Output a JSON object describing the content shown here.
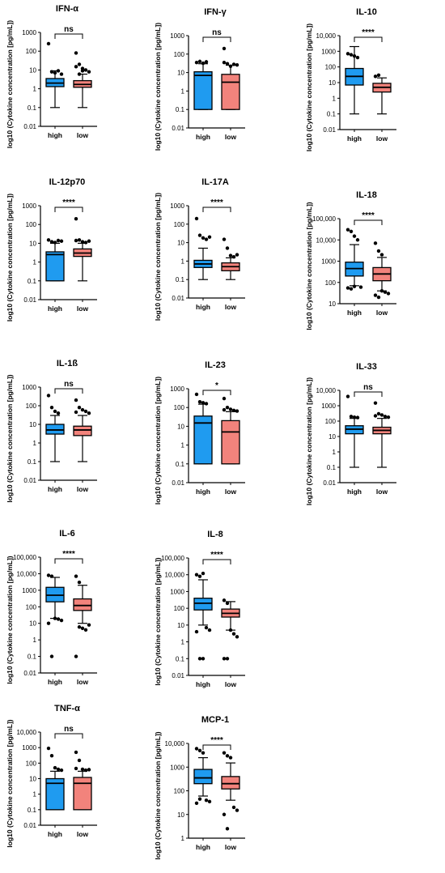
{
  "colors": {
    "high": "#1f9bf0",
    "low": "#f2837c",
    "ink": "#000000"
  },
  "chart_data": [
    {
      "type": "box",
      "title": "IFN-α",
      "ylabel": "log10 (Cytokine concentration [pg/mL])",
      "scale": "log",
      "ylim": [
        0.01,
        1000
      ],
      "ticks": [
        "0.01",
        "0.1",
        "1",
        "10",
        "100",
        "1000"
      ],
      "significance": "ns",
      "categories": [
        "high",
        "low"
      ],
      "series": [
        {
          "name": "high",
          "min": 0.1,
          "q1": 1.3,
          "median": 2,
          "q3": 3.5,
          "max": 9,
          "outliers": [
            250,
            8,
            7,
            9,
            6
          ]
        },
        {
          "name": "low",
          "min": 0.1,
          "q1": 1.2,
          "median": 1.7,
          "q3": 2.7,
          "max": 6,
          "outliers": [
            80,
            20,
            12,
            10,
            8,
            15,
            6,
            9
          ]
        }
      ]
    },
    {
      "type": "box",
      "title": "IFN-γ",
      "ylabel": "log10 (Cytokine concentration [pg/mL])",
      "scale": "log",
      "ylim": [
        0.01,
        1000
      ],
      "ticks": [
        "0.01",
        "0.1",
        "1",
        "10",
        "100",
        "1000"
      ],
      "significance": "ns",
      "categories": [
        "high",
        "low"
      ],
      "series": [
        {
          "name": "high",
          "min": 0.1,
          "q1": 0.1,
          "median": 7,
          "q3": 11,
          "max": 30,
          "outliers": [
            35,
            40,
            32,
            38
          ]
        },
        {
          "name": "low",
          "min": 0.1,
          "q1": 0.1,
          "median": 3,
          "q3": 8,
          "max": 25,
          "outliers": [
            200,
            30,
            22,
            28,
            26,
            35
          ]
        }
      ]
    },
    {
      "type": "box",
      "title": "IL-10",
      "ylabel": "log10 (Cytokine concentration [pg/mL])",
      "scale": "log",
      "ylim": [
        0.01,
        10000
      ],
      "ticks": [
        "0.01",
        "0.1",
        "1",
        "10",
        "100",
        "1000",
        "10,000"
      ],
      "significance": "****",
      "categories": [
        "high",
        "low"
      ],
      "series": [
        {
          "name": "high",
          "min": 0.1,
          "q1": 7,
          "median": 25,
          "q3": 80,
          "max": 2000,
          "outliers": [
            700,
            600,
            500,
            400
          ]
        },
        {
          "name": "low",
          "min": 0.1,
          "q1": 2.5,
          "median": 5,
          "q3": 9,
          "max": 20,
          "outliers": [
            25,
            30
          ]
        }
      ]
    },
    {
      "type": "box",
      "title": "IL-12p70",
      "ylabel": "log10 (Cytokine concentration [pg/mL])",
      "scale": "log",
      "ylim": [
        0.01,
        1000
      ],
      "ticks": [
        "0.01",
        "0.1",
        "1",
        "10",
        "100",
        "1000"
      ],
      "significance": "****",
      "categories": [
        "high",
        "low"
      ],
      "series": [
        {
          "name": "high",
          "min": 0.1,
          "q1": 0.1,
          "median": 2.5,
          "q3": 3.5,
          "max": 10,
          "outliers": [
            15,
            12,
            11,
            14,
            13
          ]
        },
        {
          "name": "low",
          "min": 0.1,
          "q1": 2,
          "median": 3,
          "q3": 5,
          "max": 10,
          "outliers": [
            200,
            15,
            12,
            11,
            13,
            14
          ]
        }
      ]
    },
    {
      "type": "box",
      "title": "IL-17A",
      "ylabel": "log10 (Cytokine concentration [pg/mL])",
      "scale": "log",
      "ylim": [
        0.01,
        1000
      ],
      "ticks": [
        "0.01",
        "0.1",
        "1",
        "10",
        "100",
        "1000"
      ],
      "significance": "****",
      "categories": [
        "high",
        "low"
      ],
      "series": [
        {
          "name": "high",
          "min": 0.1,
          "q1": 0.45,
          "median": 0.7,
          "q3": 1.1,
          "max": 5,
          "outliers": [
            200,
            25,
            18,
            15,
            20
          ]
        },
        {
          "name": "low",
          "min": 0.1,
          "q1": 0.3,
          "median": 0.5,
          "q3": 0.8,
          "max": 1.5,
          "outliers": [
            15,
            5,
            2,
            1.7,
            2.2
          ]
        }
      ]
    },
    {
      "type": "box",
      "title": "IL-18",
      "ylabel": "log10 (Cytokine concentration [pg/mL])",
      "scale": "log",
      "ylim": [
        10,
        100000
      ],
      "ticks": [
        "10",
        "100",
        "1000",
        "10,000",
        "100,000"
      ],
      "significance": "****",
      "categories": [
        "high",
        "low"
      ],
      "series": [
        {
          "name": "high",
          "min": 70,
          "q1": 200,
          "median": 450,
          "q3": 900,
          "max": 6000,
          "outliers": [
            30000,
            25000,
            15000,
            10000,
            60,
            55,
            50,
            65
          ]
        },
        {
          "name": "low",
          "min": 40,
          "q1": 120,
          "median": 250,
          "q3": 500,
          "max": 1500,
          "outliers": [
            7000,
            3000,
            2000,
            35,
            30,
            25,
            20,
            40
          ]
        }
      ]
    },
    {
      "type": "box",
      "title": "IL-1ß",
      "ylabel": "log10 (Cytokine concentration [pg/mL])",
      "scale": "log",
      "ylim": [
        0.01,
        1000
      ],
      "ticks": [
        "0.01",
        "0.1",
        "1",
        "10",
        "100",
        "1000"
      ],
      "significance": "ns",
      "categories": [
        "high",
        "low"
      ],
      "series": [
        {
          "name": "high",
          "min": 0.1,
          "q1": 3,
          "median": 5,
          "q3": 10,
          "max": 30,
          "outliers": [
            350,
            80,
            50,
            40
          ]
        },
        {
          "name": "low",
          "min": 0.1,
          "q1": 2.5,
          "median": 5,
          "q3": 8,
          "max": 30,
          "outliers": [
            200,
            80,
            60,
            50,
            40,
            45
          ]
        }
      ]
    },
    {
      "type": "box",
      "title": "IL-23",
      "ylabel": "log10 (Cytokine concentration [pg/mL])",
      "scale": "log",
      "ylim": [
        0.01,
        1000
      ],
      "ticks": [
        "0.01",
        "0.1",
        "1",
        "10",
        "100",
        "1000"
      ],
      "significance": "*",
      "categories": [
        "high",
        "low"
      ],
      "series": [
        {
          "name": "high",
          "min": 0.1,
          "q1": 0.1,
          "median": 15,
          "q3": 35,
          "max": 150,
          "outliers": [
            500,
            200,
            180,
            160
          ]
        },
        {
          "name": "low",
          "min": 0.1,
          "q1": 0.1,
          "median": 5,
          "q3": 20,
          "max": 60,
          "outliers": [
            300,
            100,
            80,
            70,
            65,
            75
          ]
        }
      ]
    },
    {
      "type": "box",
      "title": "IL-33",
      "ylabel": "log10 (Cytokine concentration [pg/mL])",
      "scale": "log",
      "ylim": [
        0.01,
        10000
      ],
      "ticks": [
        "0.01",
        "0.1",
        "1",
        "10",
        "100",
        "1000",
        "10,000"
      ],
      "significance": "ns",
      "categories": [
        "high",
        "low"
      ],
      "series": [
        {
          "name": "high",
          "min": 0.1,
          "q1": 15,
          "median": 30,
          "q3": 50,
          "max": 150,
          "outliers": [
            4000,
            200,
            180,
            170
          ]
        },
        {
          "name": "low",
          "min": 0.1,
          "q1": 15,
          "median": 25,
          "q3": 40,
          "max": 150,
          "outliers": [
            1500,
            300,
            250,
            200,
            180,
            220
          ]
        }
      ]
    },
    {
      "type": "box",
      "title": "IL-6",
      "ylabel": "log10 (Cytokine concentration [pg/mL])",
      "scale": "log",
      "ylim": [
        0.01,
        100000
      ],
      "ticks": [
        "0.01",
        "0.1",
        "1",
        "10",
        "100",
        "1000",
        "10,000",
        "100,000"
      ],
      "significance": "****",
      "categories": [
        "high",
        "low"
      ],
      "series": [
        {
          "name": "high",
          "min": 20,
          "q1": 200,
          "median": 500,
          "q3": 1500,
          "max": 6000,
          "outliers": [
            8000,
            7000,
            20,
            18,
            15,
            10,
            0.1
          ]
        },
        {
          "name": "low",
          "min": 10,
          "q1": 60,
          "median": 120,
          "q3": 300,
          "max": 2000,
          "outliers": [
            7000,
            3000,
            5,
            4,
            8,
            0.1,
            6
          ]
        }
      ]
    },
    {
      "type": "box",
      "title": "IL-8",
      "ylabel": "log10 (Cytokine concentration [pg/mL])",
      "scale": "log",
      "ylim": [
        0.01,
        100000
      ],
      "ticks": [
        "0.01",
        "0.1",
        "1",
        "10",
        "100",
        "1000",
        "10,000",
        "100,000"
      ],
      "significance": "****",
      "categories": [
        "high",
        "low"
      ],
      "series": [
        {
          "name": "high",
          "min": 10,
          "q1": 80,
          "median": 200,
          "q3": 400,
          "max": 5000,
          "outliers": [
            10000,
            8000,
            12000,
            7,
            5,
            4,
            0.1,
            0.1
          ]
        },
        {
          "name": "low",
          "min": 5,
          "q1": 30,
          "median": 50,
          "q3": 90,
          "max": 250,
          "outliers": [
            300,
            200,
            5,
            3,
            2,
            0.1,
            0.1
          ]
        }
      ]
    },
    {
      "type": "box",
      "title": "TNF-α",
      "ylabel": "log10 (Cytokine concentration [pg/mL])",
      "scale": "log",
      "ylim": [
        0.01,
        10000
      ],
      "ticks": [
        "0.01",
        "0.1",
        "1",
        "10",
        "100",
        "1000",
        "10,000"
      ],
      "significance": "ns",
      "categories": [
        "high",
        "low"
      ],
      "series": [
        {
          "name": "high",
          "min": 0.1,
          "q1": 0.1,
          "median": 5,
          "q3": 10,
          "max": 30,
          "outliers": [
            900,
            300,
            50,
            40,
            35
          ]
        },
        {
          "name": "low",
          "min": 0.1,
          "q1": 0.1,
          "median": 5,
          "q3": 12,
          "max": 30,
          "outliers": [
            500,
            150,
            40,
            35,
            38,
            45
          ]
        }
      ]
    },
    {
      "type": "box",
      "title": "MCP-1",
      "ylabel": "log10 (Cytokine concentration [pg/mL])",
      "scale": "log",
      "ylim": [
        1,
        10000
      ],
      "ticks": [
        "1",
        "10",
        "100",
        "1000",
        "10,000"
      ],
      "significance": "****",
      "categories": [
        "high",
        "low"
      ],
      "series": [
        {
          "name": "high",
          "min": 60,
          "q1": 200,
          "median": 350,
          "q3": 800,
          "max": 2500,
          "outliers": [
            6000,
            5000,
            4000,
            40,
            35,
            30,
            45
          ]
        },
        {
          "name": "low",
          "min": 40,
          "q1": 120,
          "median": 200,
          "q3": 400,
          "max": 1500,
          "outliers": [
            4000,
            3000,
            2500,
            20,
            15,
            10,
            2.5
          ]
        }
      ]
    }
  ]
}
